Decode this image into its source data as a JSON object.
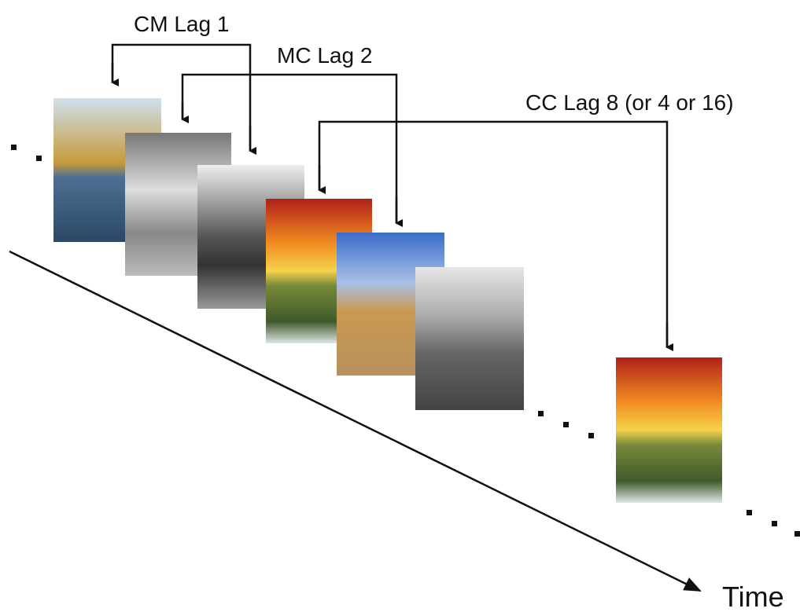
{
  "lags": [
    {
      "label": "CM Lag 1"
    },
    {
      "label": "MC Lag 2"
    },
    {
      "label": "CC Lag 8 (or 4 or 16)"
    }
  ],
  "axis_label": "Time"
}
